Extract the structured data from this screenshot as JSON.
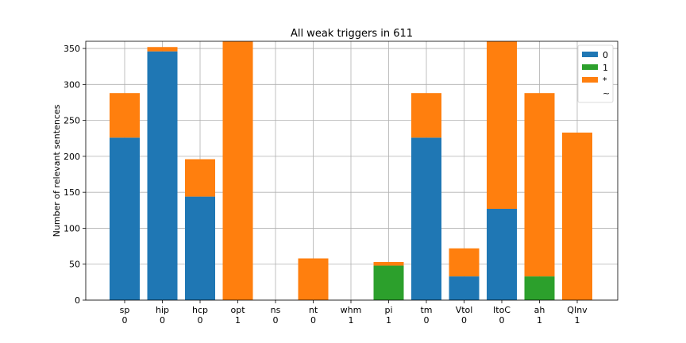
{
  "chart_data": {
    "type": "bar",
    "stacked": true,
    "title": "All weak triggers in 611",
    "ylabel": "Number of relevant sentences",
    "xlabel": "",
    "ylim": [
      0,
      360
    ],
    "yticks": [
      0,
      50,
      100,
      150,
      200,
      250,
      300,
      350
    ],
    "grid": true,
    "legend_position": "top-right",
    "categories": [
      "sp",
      "hip",
      "hcp",
      "opt",
      "ns",
      "nt",
      "whm",
      "pi",
      "tm",
      "Vtol",
      "ItoC",
      "ah",
      "QInv"
    ],
    "category_sublabels": [
      "0",
      "0",
      "0",
      "1",
      "0",
      "0",
      "1",
      "1",
      "0",
      "0",
      "0",
      "1",
      "1"
    ],
    "series": [
      {
        "name": "0",
        "color": "#1f77b4",
        "values": [
          226,
          346,
          144,
          0,
          0,
          0,
          0,
          0,
          226,
          33,
          127,
          0,
          0
        ]
      },
      {
        "name": "1",
        "color": "#2ca02c",
        "values": [
          0,
          0,
          0,
          0,
          0,
          0,
          0,
          48,
          0,
          0,
          0,
          33,
          0
        ]
      },
      {
        "name": "*",
        "color": "#ff7f0e",
        "values": [
          62,
          6,
          52,
          360,
          0,
          58,
          0,
          5,
          62,
          39,
          233,
          255,
          233
        ]
      },
      {
        "name": "~",
        "color": "#d62728",
        "values": [
          0,
          0,
          0,
          0,
          0,
          0,
          0,
          0,
          0,
          0,
          0,
          0,
          0
        ]
      }
    ]
  }
}
